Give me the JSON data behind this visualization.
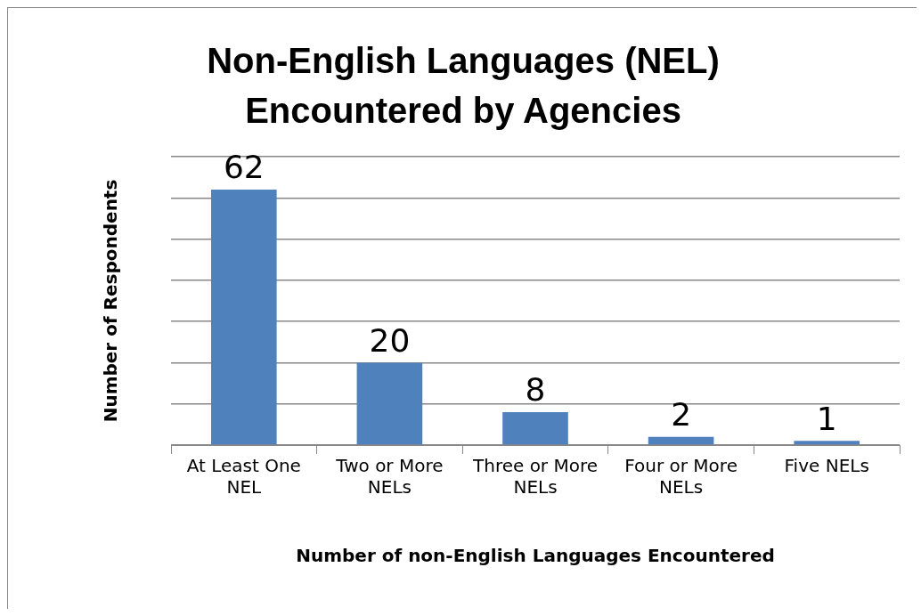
{
  "chart_data": {
    "type": "bar",
    "title": "Non-English Languages (NEL) Encountered by Agencies",
    "xlabel": "Number of non-English Languages Encountered",
    "ylabel": "Number of Respondents",
    "categories": [
      "At Least One NEL",
      "Two or More NELs",
      "Three or More NELs",
      "Four or More NELs",
      "Five NELs"
    ],
    "values": [
      62,
      20,
      8,
      2,
      1
    ],
    "color": "#4f81bd",
    "data_labels": true,
    "grid": "y",
    "legend": false,
    "ylim": [
      0,
      70
    ],
    "yticks": [
      {
        "value": 0,
        "label": null
      },
      {
        "value": 10,
        "label": null
      },
      {
        "value": 20,
        "label": null
      },
      {
        "value": 30,
        "label": null
      },
      {
        "value": 40,
        "label": null
      },
      {
        "value": 50,
        "label": null
      },
      {
        "value": 60,
        "label": null
      },
      {
        "value": 70,
        "label": null
      }
    ],
    "tick_labels": "x"
  }
}
